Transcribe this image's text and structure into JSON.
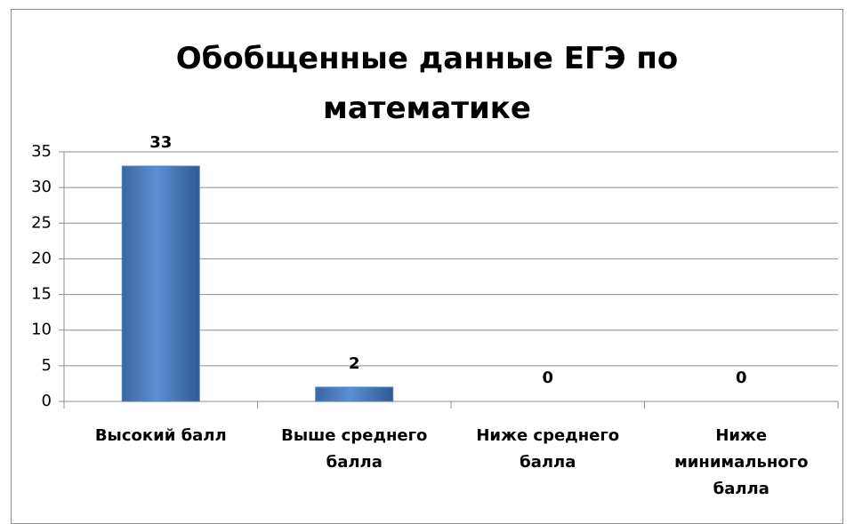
{
  "chart_data": {
    "type": "bar",
    "title": "Обобщенные данные ЕГЭ по математике",
    "categories": [
      "Высокий балл",
      "Выше среднего балла",
      "Ниже среднего балла",
      "Ниже минимального балла"
    ],
    "values": [
      33,
      2,
      0,
      0
    ],
    "color": "#4f81bd",
    "ylim": [
      0,
      35
    ],
    "yticks": [
      0,
      5,
      10,
      15,
      20,
      25,
      30,
      35
    ],
    "grid": true
  }
}
